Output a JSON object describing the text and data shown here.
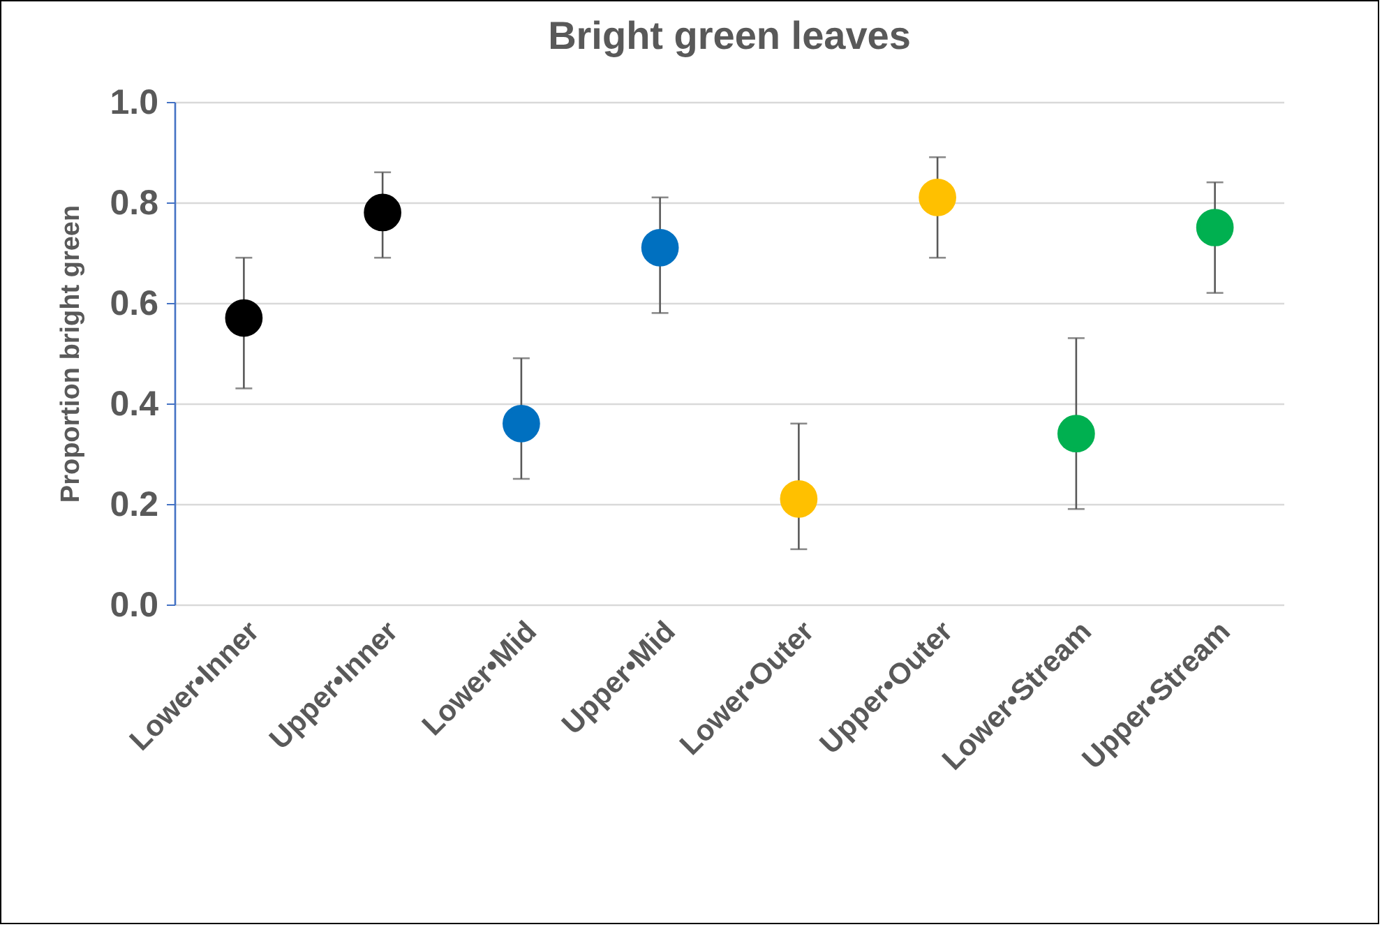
{
  "chart_data": {
    "type": "scatter",
    "title": "Bright green leaves",
    "ylabel": "Proportion  bright green",
    "categories": [
      "Lower•Inner",
      "Upper•Inner",
      "Lower•Mid",
      "Upper•Mid",
      "Lower•Outer",
      "Upper•Outer",
      "Lower•Stream",
      "Upper•Stream"
    ],
    "series": [
      {
        "x": [
          "Lower•Inner",
          "Lower•Mid",
          "Lower•Outer",
          "Lower•Stream"
        ],
        "values": [
          0.57,
          0.36,
          0.21,
          0.34
        ],
        "colors": [
          "#000000",
          "#0070c0",
          "#ffc000",
          "#00b050"
        ],
        "errors": [
          [
            0.43,
            0.69
          ],
          [
            0.25,
            0.49
          ],
          [
            0.11,
            0.36
          ],
          [
            0.19,
            0.53
          ]
        ]
      },
      {
        "x": [
          "Upper•Inner",
          "Upper•Mid",
          "Upper•Outer",
          "Upper•Stream"
        ],
        "values": [
          0.78,
          0.71,
          0.81,
          0.75
        ],
        "colors": [
          "#000000",
          "#0070c0",
          "#ffc000",
          "#00b050"
        ],
        "errors": [
          [
            0.69,
            0.86
          ],
          [
            0.58,
            0.81
          ],
          [
            0.69,
            0.89
          ],
          [
            0.62,
            0.84
          ]
        ]
      }
    ],
    "ylim": [
      0,
      1
    ],
    "yticks": [
      {
        "value": 0,
        "label": "0.0"
      },
      {
        "value": 0.2,
        "label": "0.2"
      },
      {
        "value": 0.4,
        "label": "0.4"
      },
      {
        "value": 0.6,
        "label": "0.6"
      },
      {
        "value": 0.8,
        "label": "0.8"
      },
      {
        "value": 1,
        "label": "1.0"
      }
    ],
    "grid": "y",
    "marker": "circle"
  }
}
